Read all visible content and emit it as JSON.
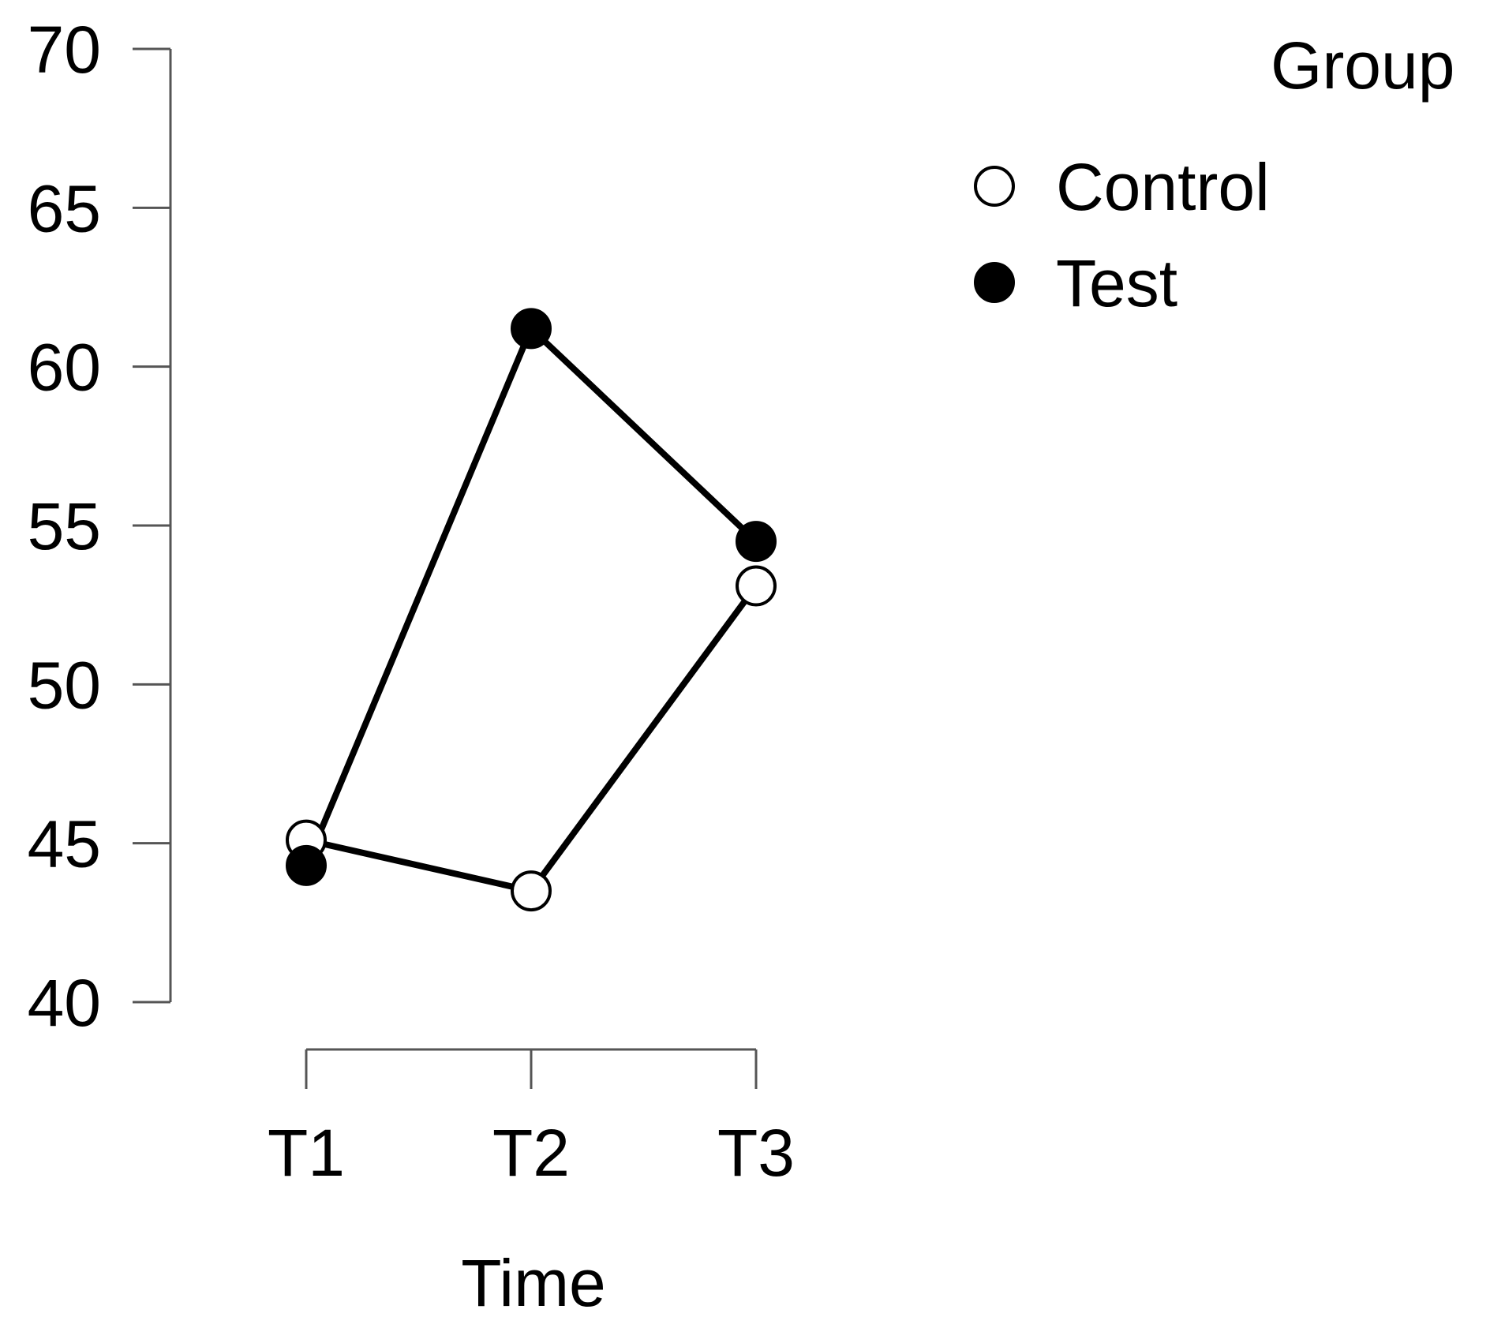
{
  "chart_data": {
    "type": "line",
    "title": "",
    "xlabel": "Time",
    "ylabel": "",
    "categories": [
      "T1",
      "T2",
      "T3"
    ],
    "ylim": [
      40,
      70
    ],
    "yticks": [
      40,
      45,
      50,
      55,
      60,
      65,
      70
    ],
    "ytick_labels": [
      "40",
      "45",
      "50",
      "55",
      "60",
      "65",
      "70"
    ],
    "legend": {
      "title": "Group",
      "placement": "top-right",
      "entries": [
        {
          "name": "Control",
          "marker": "open-circle"
        },
        {
          "name": "Test",
          "marker": "filled-circle"
        }
      ]
    },
    "series": [
      {
        "name": "Control",
        "values": [
          45.1,
          43.5,
          53.1
        ],
        "marker_fill": "#ffffff",
        "line_color": "#000000"
      },
      {
        "name": "Test",
        "values": [
          44.3,
          61.2,
          54.5
        ],
        "marker_fill": "#000000",
        "line_color": "#000000"
      }
    ],
    "grid": false
  }
}
